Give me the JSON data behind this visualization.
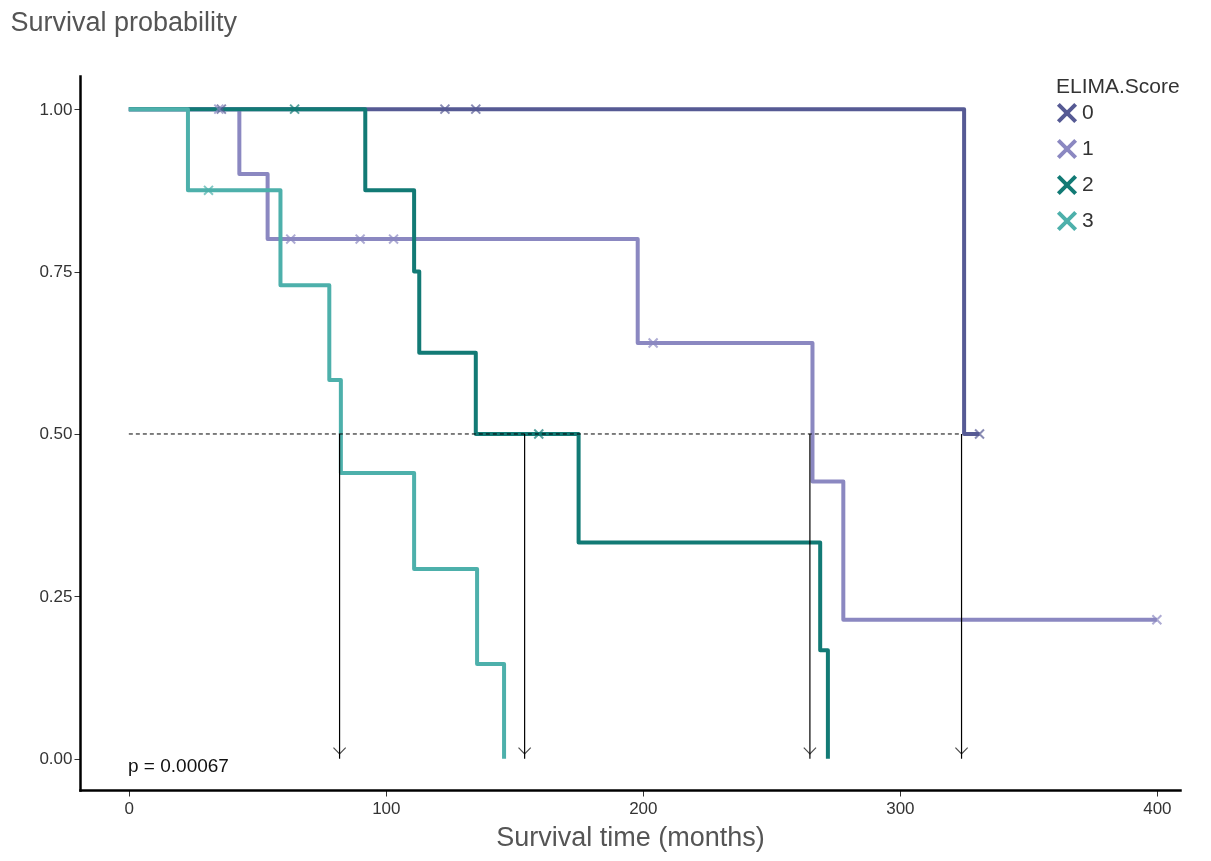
{
  "chart_data": {
    "type": "step",
    "ylabel": "Survival probability",
    "xlabel": "Survival time (months)",
    "legend_title": "ELIMA.Score",
    "legend": "top right",
    "grid": false,
    "xlim": [
      -19,
      409
    ],
    "xticks": [
      0,
      100,
      200,
      300,
      400
    ],
    "ylim": [
      -0.048,
      1.051
    ],
    "yticks": [
      {
        "value": 0,
        "label": "0.00"
      },
      {
        "value": 0.25,
        "label": "0.25"
      },
      {
        "value": 0.5,
        "label": "0.50"
      },
      {
        "value": 0.75,
        "label": "0.75"
      },
      {
        "value": 1,
        "label": "1.00"
      }
    ],
    "series": [
      {
        "name": "0",
        "color": "#565a94",
        "x": [
          0,
          325,
          331
        ],
        "values": [
          1,
          0.5,
          0.5
        ]
      },
      {
        "name": "1",
        "color": "#8b88c1",
        "x": [
          0,
          43,
          54,
          198,
          266,
          278,
          400
        ],
        "values": [
          1,
          0.9,
          0.8,
          0.64,
          0.427,
          0.214,
          0.214
        ]
      },
      {
        "name": "2",
        "color": "#127a75",
        "x": [
          0,
          92,
          111,
          113,
          135,
          175,
          269,
          272
        ],
        "values": [
          1,
          0.875,
          0.75,
          0.625,
          0.5,
          0.333,
          0.167,
          0
        ]
      },
      {
        "name": "3",
        "color": "#4db0ab",
        "x": [
          0,
          23,
          59,
          78,
          82.5,
          111,
          135.5,
          146
        ],
        "values": [
          1,
          0.875,
          0.729,
          0.583,
          0.44,
          0.292,
          0.146,
          0
        ]
      },
      {
        "color": "#565a94",
        "type": "scatter",
        "marker": "cross",
        "x": [
          36,
          123,
          135,
          331
        ],
        "values": [
          1,
          1,
          1,
          0.5
        ]
      },
      {
        "color": "#8b88c1",
        "type": "scatter",
        "marker": "cross",
        "x": [
          35,
          63,
          90,
          103,
          204,
          400
        ],
        "values": [
          1,
          0.8,
          0.8,
          0.8,
          0.64,
          0.214
        ]
      },
      {
        "color": "#127a75",
        "type": "scatter",
        "marker": "cross",
        "x": [
          64.5,
          159.5
        ],
        "values": [
          1,
          0.5
        ]
      },
      {
        "color": "#4db0ab",
        "type": "scatter",
        "marker": "cross",
        "x": [
          31
        ],
        "values": [
          0.875
        ]
      }
    ],
    "ref_lines": [
      {
        "axis": "y",
        "value": 0.5,
        "line_style": "dashed",
        "color": "#000000"
      },
      {
        "axis": "x",
        "value": 82,
        "line_style": "solid",
        "color": "#000000"
      },
      {
        "axis": "x",
        "value": 154,
        "line_style": "solid",
        "color": "#000000"
      },
      {
        "axis": "x",
        "value": 265,
        "line_style": "solid",
        "color": "#000000"
      },
      {
        "axis": "x",
        "value": 324,
        "line_style": "solid",
        "color": "#000000"
      }
    ],
    "annotations": [
      "p = 0.00067"
    ]
  }
}
